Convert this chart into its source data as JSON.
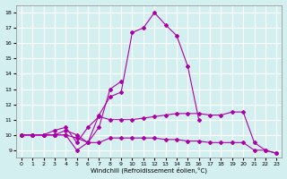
{
  "xlabel": "Windchill (Refroidissement éolien,°C)",
  "bg_color": "#d4efef",
  "grid_color": "#ffffff",
  "line_color": "#aa00aa",
  "xlim": [
    -0.5,
    23.5
  ],
  "ylim": [
    8.5,
    18.5
  ],
  "xticks": [
    0,
    1,
    2,
    3,
    4,
    5,
    6,
    7,
    8,
    9,
    10,
    11,
    12,
    13,
    14,
    15,
    16,
    17,
    18,
    19,
    20,
    21,
    22,
    23
  ],
  "yticks": [
    9,
    10,
    11,
    12,
    13,
    14,
    15,
    16,
    17,
    18
  ],
  "series": [
    {
      "x": [
        0,
        1,
        2,
        3,
        4,
        5,
        6,
        7,
        8,
        9,
        10,
        11,
        12,
        13,
        14,
        15,
        16,
        17,
        18,
        19,
        20,
        21,
        22,
        23
      ],
      "y": [
        10,
        10,
        10,
        10.3,
        10.5,
        9.5,
        10.5,
        11.2,
        11.0,
        11.0,
        11.0,
        11.1,
        11.2,
        11.3,
        11.4,
        11.4,
        11.4,
        11.3,
        11.3,
        11.5,
        11.5,
        9.5,
        9.0,
        8.8
      ]
    },
    {
      "x": [
        0,
        1,
        2,
        3,
        4,
        5,
        6,
        7,
        8,
        9,
        10,
        11,
        12,
        13,
        14,
        15,
        16,
        17,
        18,
        19,
        20,
        21,
        22,
        23
      ],
      "y": [
        10,
        10,
        10,
        10,
        10,
        9.8,
        9.5,
        9.5,
        9.8,
        9.8,
        9.8,
        9.8,
        9.8,
        9.7,
        9.7,
        9.6,
        9.6,
        9.5,
        9.5,
        9.5,
        9.5,
        9.0,
        9.0,
        8.8
      ]
    },
    {
      "x": [
        0,
        1,
        2,
        3,
        4,
        5,
        6,
        7,
        8,
        9,
        10,
        11,
        12,
        13,
        14,
        15,
        16
      ],
      "y": [
        10,
        10,
        10,
        10,
        10,
        9.0,
        9.5,
        11.3,
        12.5,
        12.8,
        16.7,
        17.0,
        18.0,
        17.2,
        16.5,
        14.5,
        11.0
      ]
    },
    {
      "x": [
        0,
        1,
        2,
        3,
        4,
        5,
        6,
        7,
        8,
        9
      ],
      "y": [
        10,
        10,
        10,
        10,
        10.3,
        10.0,
        9.5,
        10.5,
        13.0,
        13.5
      ]
    }
  ]
}
